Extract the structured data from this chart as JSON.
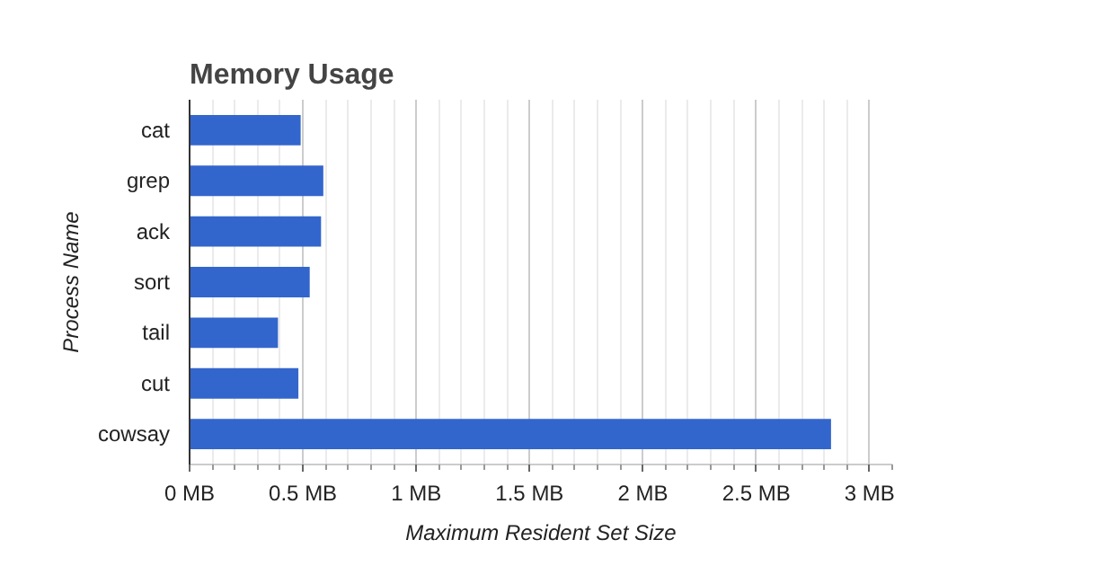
{
  "chart_data": {
    "type": "bar",
    "orientation": "horizontal",
    "title": "Memory Usage",
    "xlabel": "Maximum Resident Set Size",
    "ylabel": "Process Name",
    "categories": [
      "cat",
      "grep",
      "ack",
      "sort",
      "tail",
      "cut",
      "cowsay"
    ],
    "values": [
      0.49,
      0.59,
      0.58,
      0.53,
      0.39,
      0.48,
      2.83
    ],
    "color": "#3366cc",
    "xlim": [
      0,
      3.1
    ],
    "xticks": [
      {
        "value": 0,
        "label": "0 MB"
      },
      {
        "value": 0.1,
        "label": null
      },
      {
        "value": 0.2,
        "label": null
      },
      {
        "value": 0.3,
        "label": null
      },
      {
        "value": 0.4,
        "label": null
      },
      {
        "value": 0.5,
        "label": "0.5 MB"
      },
      {
        "value": 0.6,
        "label": null
      },
      {
        "value": 0.7,
        "label": null
      },
      {
        "value": 0.8,
        "label": null
      },
      {
        "value": 0.9,
        "label": null
      },
      {
        "value": 1,
        "label": "1 MB"
      },
      {
        "value": 1.1,
        "label": null
      },
      {
        "value": 1.2,
        "label": null
      },
      {
        "value": 1.3,
        "label": null
      },
      {
        "value": 1.4,
        "label": null
      },
      {
        "value": 1.5,
        "label": "1.5 MB"
      },
      {
        "value": 1.6,
        "label": null
      },
      {
        "value": 1.7,
        "label": null
      },
      {
        "value": 1.8,
        "label": null
      },
      {
        "value": 1.9,
        "label": null
      },
      {
        "value": 2,
        "label": "2 MB"
      },
      {
        "value": 2.1,
        "label": null
      },
      {
        "value": 2.2,
        "label": null
      },
      {
        "value": 2.3,
        "label": null
      },
      {
        "value": 2.4,
        "label": null
      },
      {
        "value": 2.5,
        "label": "2.5 MB"
      },
      {
        "value": 2.6,
        "label": null
      },
      {
        "value": 2.7,
        "label": null
      },
      {
        "value": 2.8,
        "label": null
      },
      {
        "value": 2.9,
        "label": null
      },
      {
        "value": 3,
        "label": "3 MB"
      },
      {
        "value": 3.1,
        "label": null
      }
    ],
    "grid": "x"
  }
}
